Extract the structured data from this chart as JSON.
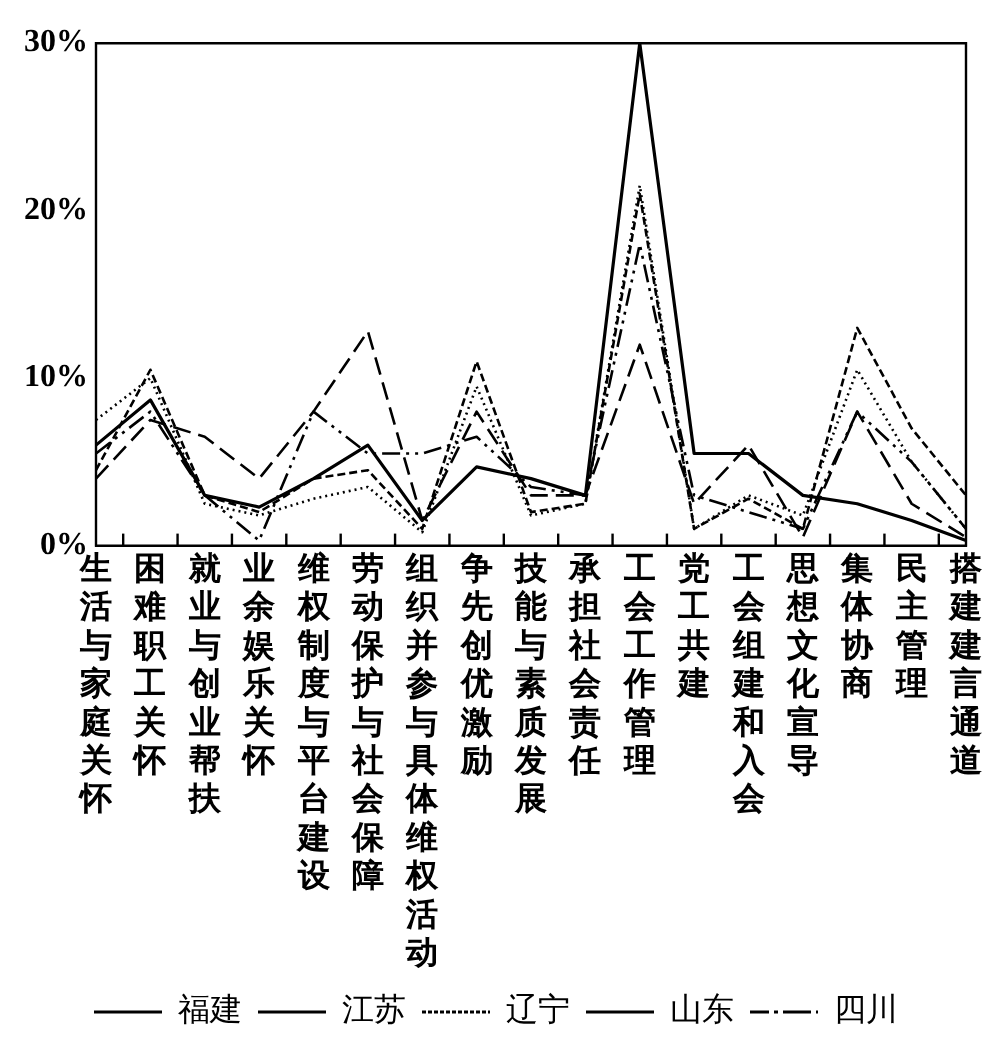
{
  "chart_data": {
    "type": "line",
    "categories": [
      "生活与家庭关怀",
      "困难职工关怀",
      "就业与创业帮扶",
      "业余娱乐关怀",
      "维权制度与平台建设",
      "劳动保护与社会保障",
      "组织并参与具体维权活动",
      "争先创优激励",
      "技能与素质发展",
      "承担社会责任",
      "工会工作管理",
      "党工共建",
      "工会组建和入会",
      "思想文化宣导",
      "集体协商",
      "民主管理",
      "搭建建言通道"
    ],
    "series": [
      {
        "name": "福建",
        "color": "#000000",
        "line_style": "solid",
        "values": [
          6,
          8.7,
          3,
          2.3,
          4,
          6,
          1.5,
          4.7,
          4,
          3,
          30,
          5.5,
          5.5,
          3,
          2.5,
          1.5,
          0.3
        ]
      },
      {
        "name": "江苏",
        "color": "#000000",
        "line_style": "dashed",
        "values": [
          4.5,
          10.5,
          3,
          2,
          4,
          4.5,
          1,
          11,
          2,
          2.5,
          21,
          1,
          2.8,
          1,
          13,
          7,
          3
        ]
      },
      {
        "name": "辽宁",
        "color": "#000000",
        "line_style": "dotted",
        "values": [
          7.5,
          10,
          2.5,
          1.8,
          2.8,
          3.5,
          0.8,
          9.5,
          1.8,
          2.5,
          21.5,
          1,
          3,
          1.8,
          10.5,
          5,
          1
        ]
      },
      {
        "name": "山东",
        "color": "#000000",
        "line_style": "longdash",
        "values": [
          4,
          7.5,
          6.5,
          4,
          8,
          12.8,
          1.5,
          8,
          3,
          3,
          12,
          2.5,
          6,
          0.5,
          8,
          2.5,
          0.5
        ]
      },
      {
        "name": "四川",
        "color": "#000000",
        "line_style": "dashdot",
        "values": [
          5.5,
          8,
          3,
          0.3,
          8,
          5.5,
          5.5,
          6.5,
          3.5,
          3,
          18,
          3,
          2,
          1,
          8,
          5,
          1
        ]
      }
    ],
    "ylim": [
      0,
      30
    ],
    "yticks": [
      {
        "value": 0,
        "label": "0%"
      },
      {
        "value": 10,
        "label": "10%"
      },
      {
        "value": 20,
        "label": "20%"
      },
      {
        "value": 30,
        "label": "30%"
      }
    ],
    "grid": false,
    "legend": "bottom",
    "marker": "none"
  }
}
